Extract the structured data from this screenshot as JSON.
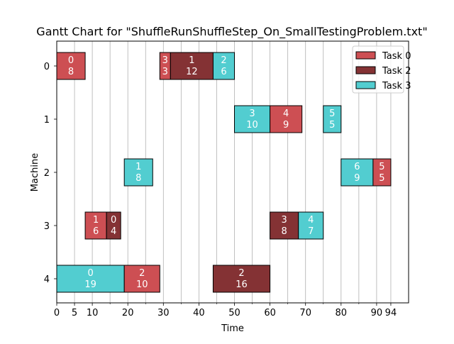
{
  "chart_data": {
    "type": "gantt",
    "title": "Gantt Chart for \"ShuffleRunShuffleStep_On_SmallTestingProblem.txt\"",
    "xlabel": "Time",
    "ylabel": "Machine",
    "xlim": [
      0,
      99
    ],
    "x_ticks": [
      0,
      5,
      10,
      20,
      30,
      40,
      50,
      60,
      70,
      80,
      90,
      94
    ],
    "machines": [
      0,
      1,
      2,
      3,
      4
    ],
    "grid": "vertical",
    "legend_position": "top-right",
    "colors": {
      "Task 0": "#cd4f53",
      "Task 2": "#843234",
      "Task 3": "#52cdd0"
    },
    "legend": [
      "Task 0",
      "Task 2",
      "Task 3"
    ],
    "bars": [
      {
        "machine": 0,
        "task": "Task 0",
        "start": 0,
        "duration": 8,
        "label_top": "0",
        "label_bottom": "8"
      },
      {
        "machine": 0,
        "task": "Task 0",
        "start": 29,
        "duration": 3,
        "label_top": "3",
        "label_bottom": "3"
      },
      {
        "machine": 0,
        "task": "Task 2",
        "start": 32,
        "duration": 12,
        "label_top": "1",
        "label_bottom": "12"
      },
      {
        "machine": 0,
        "task": "Task 3",
        "start": 44,
        "duration": 6,
        "label_top": "2",
        "label_bottom": "6"
      },
      {
        "machine": 1,
        "task": "Task 3",
        "start": 50,
        "duration": 10,
        "label_top": "3",
        "label_bottom": "10"
      },
      {
        "machine": 1,
        "task": "Task 0",
        "start": 60,
        "duration": 9,
        "label_top": "4",
        "label_bottom": "9"
      },
      {
        "machine": 1,
        "task": "Task 3",
        "start": 75,
        "duration": 5,
        "label_top": "5",
        "label_bottom": "5"
      },
      {
        "machine": 2,
        "task": "Task 3",
        "start": 19,
        "duration": 8,
        "label_top": "1",
        "label_bottom": "8"
      },
      {
        "machine": 2,
        "task": "Task 3",
        "start": 80,
        "duration": 9,
        "label_top": "6",
        "label_bottom": "9"
      },
      {
        "machine": 2,
        "task": "Task 0",
        "start": 89,
        "duration": 5,
        "label_top": "5",
        "label_bottom": "5"
      },
      {
        "machine": 3,
        "task": "Task 0",
        "start": 8,
        "duration": 6,
        "label_top": "1",
        "label_bottom": "6"
      },
      {
        "machine": 3,
        "task": "Task 2",
        "start": 14,
        "duration": 4,
        "label_top": "0",
        "label_bottom": "4"
      },
      {
        "machine": 3,
        "task": "Task 2",
        "start": 60,
        "duration": 8,
        "label_top": "3",
        "label_bottom": "8"
      },
      {
        "machine": 3,
        "task": "Task 3",
        "start": 68,
        "duration": 7,
        "label_top": "4",
        "label_bottom": "7"
      },
      {
        "machine": 4,
        "task": "Task 3",
        "start": 0,
        "duration": 19,
        "label_top": "0",
        "label_bottom": "19"
      },
      {
        "machine": 4,
        "task": "Task 0",
        "start": 19,
        "duration": 10,
        "label_top": "2",
        "label_bottom": "10"
      },
      {
        "machine": 4,
        "task": "Task 2",
        "start": 44,
        "duration": 16,
        "label_top": "2",
        "label_bottom": "16"
      }
    ]
  }
}
